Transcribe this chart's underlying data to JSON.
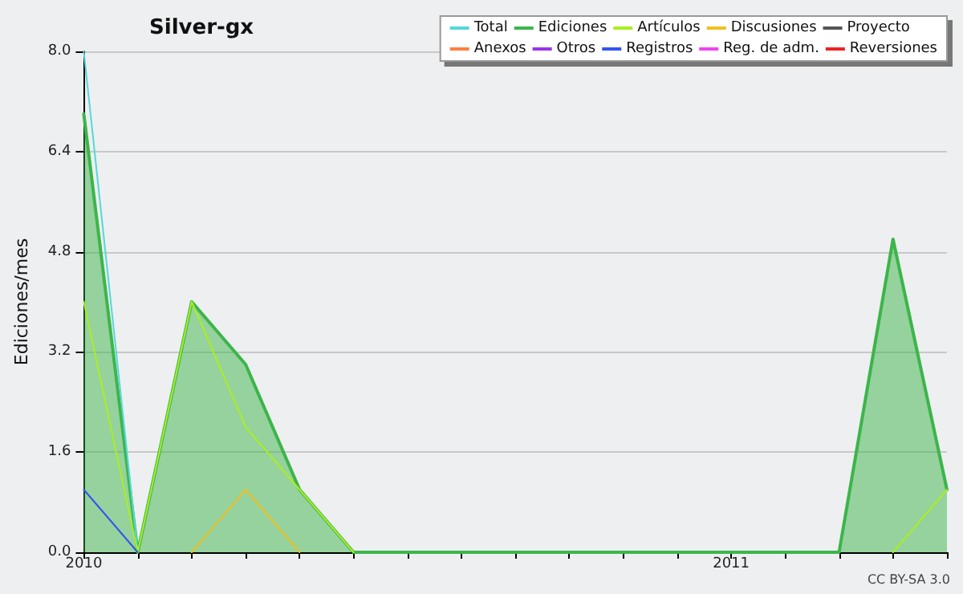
{
  "chart_data": {
    "type": "line",
    "title": "Silver-gx",
    "ylabel": "Ediciones/mes",
    "categories": [
      "2010",
      null,
      null,
      null,
      null,
      null,
      null,
      null,
      null,
      null,
      null,
      null,
      "2011",
      null,
      null,
      null,
      null
    ],
    "series": [
      {
        "name": "Total",
        "color": "#55d8d8",
        "values": [
          8,
          0,
          null,
          null,
          null,
          null,
          null,
          null,
          null,
          null,
          null,
          null,
          null,
          null,
          null,
          null,
          null
        ]
      },
      {
        "name": "Ediciones",
        "type": "area",
        "color": "#3cb54a",
        "values": [
          7,
          0,
          4,
          3,
          1,
          0,
          0,
          0,
          0,
          0,
          0,
          0,
          0,
          0,
          0,
          5,
          1
        ]
      },
      {
        "name": "Artículos",
        "color": "#aaee22",
        "values": [
          4,
          0,
          4,
          2,
          1,
          0,
          null,
          null,
          null,
          null,
          null,
          null,
          null,
          null,
          null,
          0,
          1
        ]
      },
      {
        "name": "Discusiones",
        "color": "#f0c020",
        "values": [
          null,
          null,
          0,
          1,
          0,
          null,
          null,
          null,
          null,
          null,
          null,
          null,
          null,
          null,
          null,
          null,
          null
        ]
      },
      {
        "name": "Proyecto",
        "color": "#555555",
        "values": [
          null,
          null,
          null,
          null,
          null,
          null,
          null,
          null,
          null,
          null,
          null,
          null,
          null,
          null,
          null,
          null,
          null
        ]
      },
      {
        "name": "Anexos",
        "color": "#ff7f3f",
        "values": [
          null,
          null,
          null,
          null,
          null,
          null,
          null,
          null,
          null,
          null,
          null,
          null,
          null,
          null,
          null,
          null,
          null
        ]
      },
      {
        "name": "Otros",
        "color": "#9933ee",
        "values": [
          null,
          null,
          null,
          null,
          null,
          null,
          null,
          null,
          null,
          null,
          null,
          null,
          null,
          null,
          null,
          null,
          null
        ]
      },
      {
        "name": "Registros",
        "color": "#3355ee",
        "values": [
          1,
          0,
          null,
          null,
          null,
          null,
          null,
          null,
          null,
          null,
          null,
          null,
          null,
          null,
          null,
          null,
          null
        ]
      },
      {
        "name": "Reg. de adm.",
        "color": "#ee44ee",
        "values": [
          null,
          null,
          null,
          null,
          null,
          null,
          null,
          null,
          null,
          null,
          null,
          null,
          null,
          null,
          null,
          null,
          null
        ]
      },
      {
        "name": "Reversiones",
        "color": "#ee2222",
        "values": [
          null,
          null,
          null,
          null,
          null,
          null,
          null,
          null,
          null,
          null,
          null,
          null,
          null,
          null,
          null,
          null,
          null
        ]
      }
    ],
    "ylim": [
      0,
      8
    ],
    "yticks": [
      {
        "value": 0,
        "label": "0.0"
      },
      {
        "value": 1.6,
        "label": "1.6"
      },
      {
        "value": 3.2,
        "label": "3.2"
      },
      {
        "value": 4.8,
        "label": "4.8"
      },
      {
        "value": 6.4,
        "label": "6.4"
      },
      {
        "value": 8,
        "label": "8.0"
      }
    ],
    "grid": "y",
    "legend": "top right",
    "marker": "none",
    "line_style": "solid",
    "annotations": [
      "CC BY-SA 3.0"
    ]
  }
}
